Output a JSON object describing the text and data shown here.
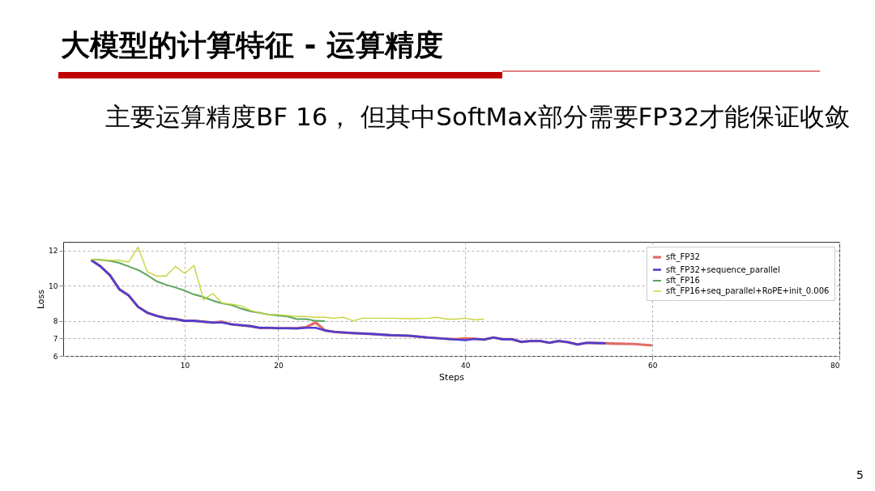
{
  "chart_data": {
    "type": "line",
    "title": "大模型的计算特征  - 运算精度",
    "subtitle": "主要运算精度BF 16， 但其中SoftMax部分需要FP32才能保证收敛",
    "xlabel": "Steps",
    "ylabel": "Loss",
    "annotations": [
      "5"
    ],
    "xlim": [
      -3,
      80
    ],
    "xticks": [
      10,
      20,
      40,
      60,
      80
    ],
    "ylim": [
      6,
      12.5
    ],
    "yticks": [
      6,
      7,
      8,
      10,
      12
    ],
    "grid": true,
    "legend": "top right",
    "line_style": "solid",
    "marker": "none",
    "series": [
      {
        "name": "sft_FP32",
        "color": "#e06c66",
        "x": [
          0,
          1,
          2,
          3,
          4,
          5,
          6,
          7,
          8,
          9,
          10,
          11,
          12,
          13,
          14,
          15,
          16,
          17,
          18,
          19,
          20,
          21,
          22,
          23,
          24,
          25,
          26,
          28,
          30,
          32,
          34,
          36,
          38,
          39,
          40,
          41,
          42,
          43,
          44,
          45,
          46,
          47,
          48,
          49,
          50,
          51,
          52,
          53,
          54,
          55,
          56,
          58,
          60
        ],
        "values": [
          11.46,
          11.1,
          10.6,
          9.8,
          9.45,
          8.8,
          8.46,
          8.28,
          8.15,
          8.1,
          8.0,
          8.0,
          7.95,
          7.9,
          7.95,
          7.8,
          7.75,
          7.7,
          7.6,
          7.6,
          7.58,
          7.58,
          7.57,
          7.65,
          7.9,
          7.45,
          7.37,
          7.3,
          7.25,
          7.18,
          7.15,
          7.05,
          6.98,
          6.95,
          7.0,
          6.98,
          6.93,
          7.05,
          6.95,
          6.95,
          6.8,
          6.85,
          6.85,
          6.75,
          6.85,
          6.78,
          6.65,
          6.75,
          6.73,
          6.72,
          6.7,
          6.68,
          6.6
        ]
      },
      {
        "name": "sft_FP32+sequence_parallel",
        "color": "#4b3fd0",
        "x": [
          0,
          1,
          2,
          3,
          4,
          5,
          6,
          7,
          8,
          9,
          10,
          11,
          12,
          13,
          14,
          15,
          16,
          17,
          18,
          19,
          20,
          21,
          22,
          23,
          24,
          25,
          26,
          28,
          30,
          32,
          34,
          36,
          38,
          39,
          40,
          41,
          42,
          43,
          44,
          45,
          46,
          47,
          48,
          49,
          50,
          51,
          52,
          53,
          54,
          55
        ],
        "values": [
          11.46,
          11.1,
          10.6,
          9.8,
          9.45,
          8.8,
          8.46,
          8.28,
          8.15,
          8.1,
          8.0,
          8.0,
          7.95,
          7.9,
          7.9,
          7.8,
          7.75,
          7.7,
          7.6,
          7.6,
          7.58,
          7.58,
          7.57,
          7.6,
          7.6,
          7.45,
          7.37,
          7.3,
          7.25,
          7.18,
          7.15,
          7.05,
          6.97,
          6.93,
          6.9,
          6.97,
          6.93,
          7.05,
          6.95,
          6.95,
          6.8,
          6.85,
          6.85,
          6.75,
          6.85,
          6.78,
          6.65,
          6.75,
          6.73,
          6.72
        ]
      },
      {
        "name": "sft_FP16",
        "color": "#5aa55a",
        "x": [
          0,
          1,
          2,
          3,
          4,
          5,
          6,
          7,
          8,
          9,
          10,
          11,
          12,
          13,
          14,
          15,
          16,
          17,
          18,
          19,
          20,
          21,
          22,
          23,
          24,
          25
        ],
        "values": [
          11.5,
          11.47,
          11.42,
          11.3,
          11.1,
          10.9,
          10.6,
          10.25,
          10.05,
          9.9,
          9.72,
          9.5,
          9.35,
          9.15,
          9.0,
          8.9,
          8.7,
          8.55,
          8.45,
          8.35,
          8.3,
          8.25,
          8.1,
          8.1,
          8.0,
          7.98
        ]
      },
      {
        "name": "sft_FP16+seq_parallel+RoPE+init_0.006",
        "color": "#c8d43c",
        "x": [
          0,
          1,
          2,
          3,
          4,
          5,
          6,
          7,
          8,
          9,
          10,
          11,
          12,
          13,
          14,
          15,
          16,
          17,
          18,
          19,
          20,
          21,
          22,
          23,
          24,
          25,
          26,
          27,
          28,
          29,
          30,
          32,
          34,
          36,
          37,
          38,
          39,
          40,
          41,
          42
        ],
        "values": [
          11.5,
          11.48,
          11.45,
          11.45,
          11.35,
          12.2,
          10.8,
          10.55,
          10.55,
          11.1,
          10.7,
          11.15,
          9.2,
          9.55,
          9.0,
          8.95,
          8.85,
          8.6,
          8.45,
          8.35,
          8.35,
          8.3,
          8.25,
          8.25,
          8.2,
          8.2,
          8.15,
          8.2,
          8.0,
          8.15,
          8.15,
          8.15,
          8.12,
          8.15,
          8.2,
          8.1,
          8.1,
          8.15,
          8.05,
          8.1
        ]
      }
    ]
  }
}
